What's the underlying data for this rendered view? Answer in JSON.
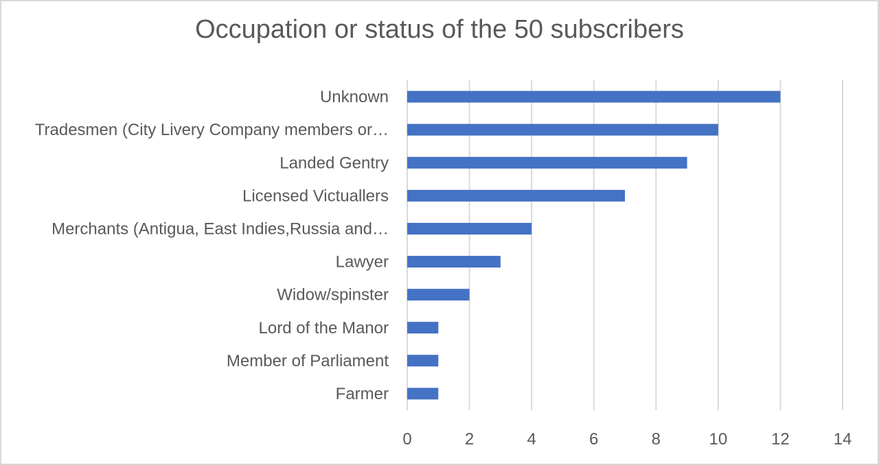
{
  "chart_data": {
    "type": "bar",
    "orientation": "horizontal",
    "title": "Occupation or status of the 50 subscribers",
    "categories": [
      "Unknown",
      "Tradesmen (City Livery Company members or…",
      "Landed Gentry",
      "Licensed Victuallers",
      "Merchants (Antigua, East Indies,Russia and…",
      "Lawyer",
      "Widow/spinster",
      "Lord of the Manor",
      "Member of Parliament",
      "Farmer"
    ],
    "values": [
      12,
      10,
      9,
      7,
      4,
      3,
      2,
      1,
      1,
      1
    ],
    "xlim": [
      0,
      14
    ],
    "xticks": [
      "0",
      "2",
      "4",
      "6",
      "8",
      "10",
      "12",
      "14"
    ],
    "grid": true,
    "legend": "none",
    "bar_color": "#4472c4",
    "grid_color": "#d9d9d9"
  }
}
